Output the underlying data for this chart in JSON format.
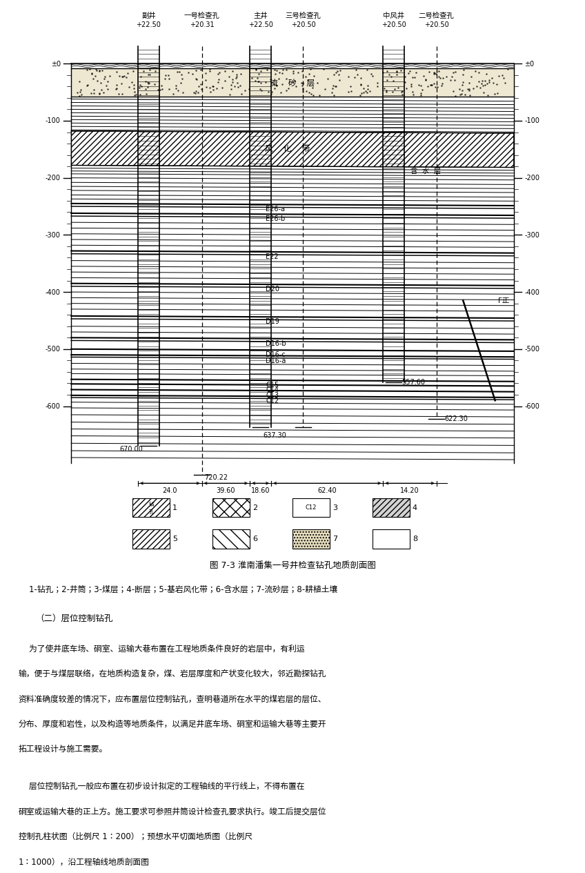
{
  "title": "图 7-3 淮南潘集一号井检查钻孔地质剖面图",
  "caption": "    1-钻孔；2-井筒；3-煤层；4-断层；5-基岩风化带；6-含水层；7-流砂层；8-耕植土壤",
  "section_title": "（二）层位控制钻孔",
  "para1": "    为了使井底车场、硐室、运输大巷布置在工程地质条件良好的岩层中，有利运输，便于与煤层联络，在地质构造复杂，煤、岩层厚度和产状变化较大，邻近勘探钻孔资料准确度较差的情况下，应布置层位控制钻孔，查明巷道所在水平的煤岩层的层位、分布、厚度和岩性，以及构造等地质条件，以满足井底车场、硐室和运输大巷等主要开拓工程设计与施工需要。",
  "para2": "    层位控制钻孔一般应布置在初步设计拟定的工程轴线的平行线上，不得布置在硐室或运输大巷的正上方。施工要求可参照井筒设计检查孔要求执行。竣工后提交层位控制孔柱状图（比例尺 1：200）；预想水平切面地质图（比例尺 1：1000），沿工程轴线地质剖面图",
  "background_color": "#ffffff"
}
